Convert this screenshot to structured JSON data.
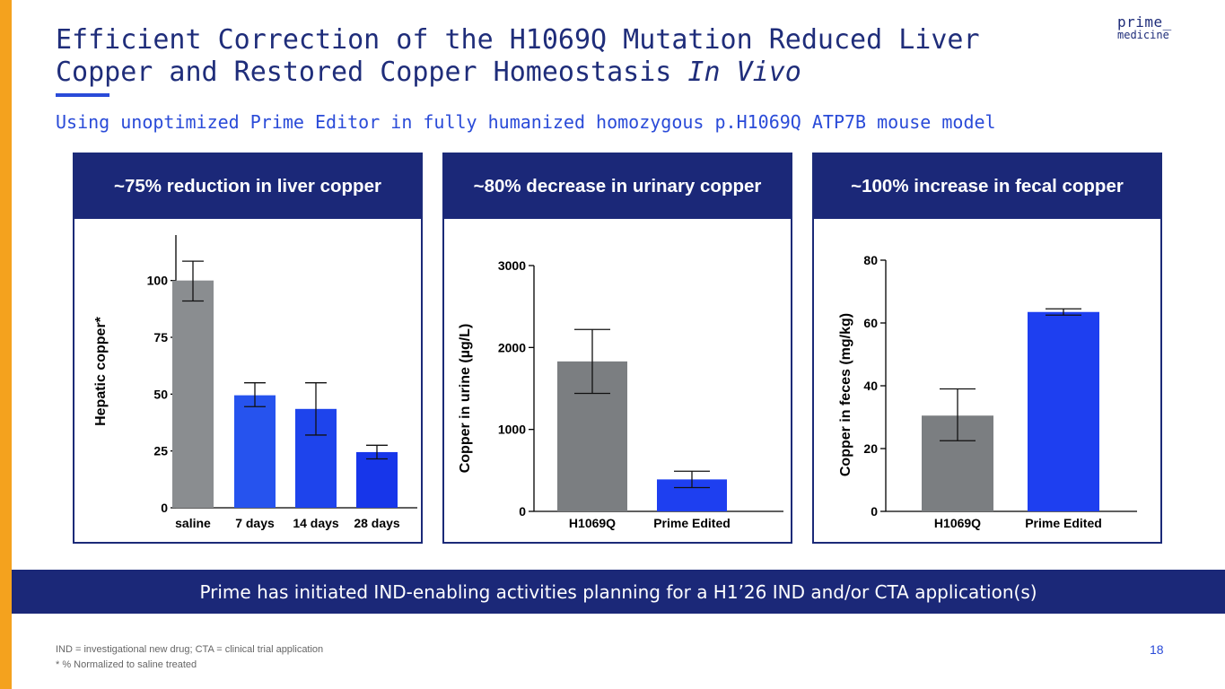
{
  "title": {
    "line1": "Efficient Correction of the H1069Q Mutation Reduced Liver",
    "line2_main": "Copper and Restored Copper Homeostasis ",
    "line2_italic": "In Vivo"
  },
  "logo": {
    "line1": "prime_",
    "line2": "medicine"
  },
  "subtitle": "Using unoptimized Prime Editor in fully humanized homozygous p.H1069Q ATP7B mouse model",
  "panels": [
    {
      "header": "~75% reduction in liver copper"
    },
    {
      "header": "~80% decrease in urinary copper"
    },
    {
      "header": "~100% increase in fecal copper"
    }
  ],
  "colors": {
    "gray": "#7b7e81",
    "blue_light": "#2653ee",
    "blue_dark": "#1736ea",
    "navy": "#1b2878",
    "orange": "#f4a21e"
  },
  "chart_data": [
    {
      "type": "bar",
      "ylabel": "Hepatic copper*",
      "xlabel": "",
      "ylim": [
        0,
        120
      ],
      "yticks": [
        0,
        25,
        50,
        75,
        100
      ],
      "categories": [
        "saline",
        "7 days",
        "14 days",
        "28 days"
      ],
      "values": [
        100,
        49.5,
        43.5,
        24.5
      ],
      "errors": [
        [
          91,
          108.5
        ],
        [
          44.5,
          55
        ],
        [
          32,
          55
        ],
        [
          21.5,
          27.5
        ]
      ],
      "bar_colors": [
        "#8a8d90",
        "#2653ee",
        "#1e44ec",
        "#1736ea"
      ]
    },
    {
      "type": "bar",
      "ylabel": "Copper in urine (µg/L)",
      "xlabel": "",
      "ylim": [
        0,
        3000
      ],
      "yticks": [
        0,
        1000,
        2000,
        3000
      ],
      "categories": [
        "H1069Q",
        "Prime Edited"
      ],
      "values": [
        1830,
        390
      ],
      "errors": [
        [
          1440,
          2220
        ],
        [
          290,
          490
        ]
      ],
      "bar_colors": [
        "#7b7e81",
        "#1e3ff0"
      ]
    },
    {
      "type": "bar",
      "ylabel": "Copper in feces (mg/kg)",
      "xlabel": "",
      "ylim": [
        0,
        80
      ],
      "yticks": [
        0,
        20,
        40,
        60,
        80
      ],
      "categories": [
        "H1069Q",
        "Prime Edited"
      ],
      "values": [
        30.5,
        63.5
      ],
      "errors": [
        [
          22.5,
          39
        ],
        [
          62.5,
          64.5
        ]
      ],
      "bar_colors": [
        "#7b7e81",
        "#1e3ff0"
      ]
    }
  ],
  "banner": "Prime has initiated IND-enabling activities planning for a H1’26 IND and/or CTA application(s)",
  "footnotes": [
    "IND = investigational new drug; CTA = clinical trial application",
    "* % Normalized to saline treated"
  ],
  "page_number": "18"
}
